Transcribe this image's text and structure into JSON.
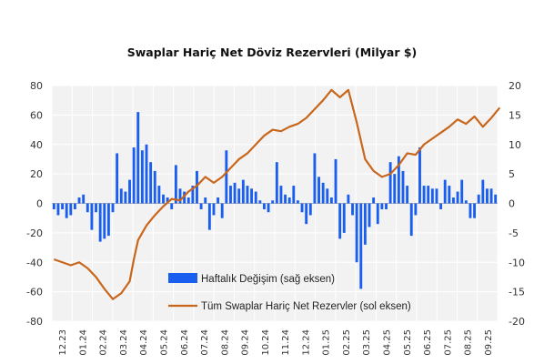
{
  "colors": {
    "bars": "#1a5ef0",
    "line": "#c8661c",
    "grid": "#e6e6e6",
    "plot_bg": "#f2f2f2"
  },
  "chart_data": {
    "type": "bar+line",
    "title": "Swaplar Hariç Net Döviz Rezervleri (Milyar $)",
    "left_axis": {
      "ylim": [
        -80,
        80
      ],
      "ticks": [
        "80",
        "60",
        "40",
        "20",
        "0",
        "-20",
        "-40",
        "-60",
        "-80"
      ]
    },
    "right_axis": {
      "ylim": [
        -20,
        20
      ],
      "ticks": [
        "20",
        "15",
        "10",
        "5",
        "0",
        "-5",
        "-10",
        "-15",
        "-20"
      ]
    },
    "x_tick_labels": [
      "12.23",
      "01.24",
      "02.24",
      "03.24",
      "04.24",
      "05.24",
      "06.24",
      "07.24",
      "08.24",
      "09.24",
      "10.24",
      "11.24",
      "12.24",
      "01.25",
      "02.25",
      "03.25",
      "04.25",
      "05.25",
      "06.25",
      "07.25",
      "08.25",
      "09.25"
    ],
    "grid": true,
    "legend_position": "center-bottom",
    "series": [
      {
        "name": "Haftalık Değişim (sağ eksen)",
        "type": "bar",
        "axis": "right",
        "values": [
          -1,
          -2,
          -1,
          -2.5,
          -2,
          -1,
          1,
          1.5,
          -1.5,
          -4.5,
          -1.5,
          -6.5,
          -6,
          -5.5,
          -1.5,
          8.5,
          2.5,
          2,
          4,
          9.5,
          15.5,
          9,
          10,
          7,
          5.5,
          3,
          1.5,
          1,
          -1,
          6.5,
          2.5,
          2,
          1,
          3,
          5.5,
          -1,
          1,
          -4.5,
          -2,
          1,
          -2.5,
          9,
          3,
          3.5,
          2.5,
          4,
          3,
          2.5,
          2,
          0.5,
          -1,
          -1.5,
          0.5,
          7,
          3,
          1.5,
          1,
          3,
          0.5,
          -1.5,
          -3.5,
          -2,
          8.5,
          4.5,
          3.5,
          2.5,
          1,
          7.5,
          -6,
          -5,
          1.5,
          -2,
          -10,
          -14.5,
          -7,
          -4,
          1,
          -3.5,
          -1,
          -1,
          7,
          5,
          8,
          5.5,
          3,
          -5.5,
          -2,
          9.5,
          3,
          3,
          2.5,
          2.5,
          -1,
          4,
          3,
          1,
          2,
          4,
          0.5,
          -2.5,
          -2.5,
          1.5,
          4,
          2.5,
          2.5,
          1.5
        ]
      },
      {
        "name": "Tüm Swaplar Hariç Net Rezervler (sol eksen)",
        "type": "line",
        "axis": "left",
        "x_index": [
          0,
          2,
          4,
          6,
          8,
          10,
          12,
          14,
          16,
          18,
          19,
          20,
          22,
          24,
          26,
          28,
          30,
          32,
          34,
          36,
          38,
          40,
          42,
          44,
          46,
          48,
          50,
          52,
          54,
          56,
          58,
          60,
          62,
          64,
          66,
          68,
          70,
          72,
          74,
          76,
          78,
          80,
          82,
          84,
          86,
          88,
          90,
          92,
          94,
          96,
          98,
          100,
          102,
          104,
          106
        ],
        "values": [
          -38,
          -40,
          -42,
          -40,
          -44,
          -50,
          -58,
          -65,
          -61,
          -53,
          -38,
          -25,
          -15,
          -8,
          -2,
          3,
          2,
          8,
          12,
          18,
          14,
          18,
          24,
          30,
          34,
          40,
          46,
          50,
          49,
          52,
          54,
          58,
          64,
          70,
          77,
          72,
          77,
          55,
          30,
          22,
          18,
          20,
          26,
          34,
          33,
          40,
          44,
          48,
          52,
          57,
          54,
          59,
          52,
          58,
          65
        ]
      }
    ]
  }
}
